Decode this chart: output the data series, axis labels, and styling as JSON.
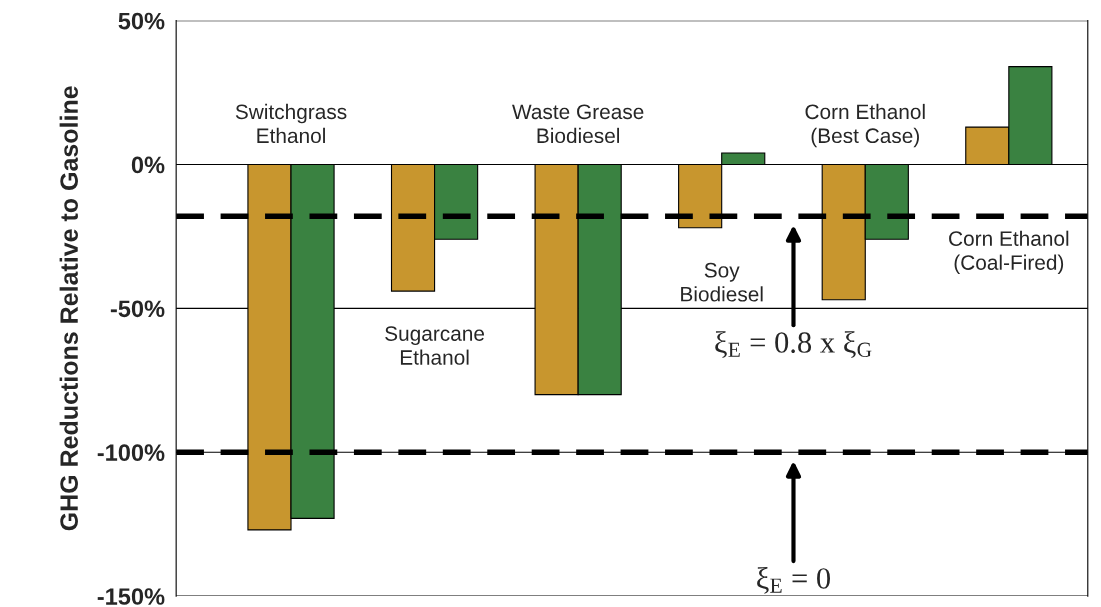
{
  "chart_data": {
    "type": "bar",
    "ylabel": "GHG Reductions Relative to Gasoline",
    "categories": [
      "Switchgrass\nEthanol",
      "Sugarcane\nEthanol",
      "Waste Grease\nBiodiesel",
      "Soy\nBiodiesel",
      "Corn Ethanol\n(Best Case)",
      "Corn Ethanol\n(Coal-Fired)"
    ],
    "series": [
      {
        "color": "#c8962e",
        "values": [
          -127,
          -44,
          -80,
          -22,
          -47,
          13
        ]
      },
      {
        "color": "#3a8241",
        "values": [
          -123,
          -26,
          -80,
          4,
          -26,
          34
        ]
      }
    ],
    "ylim": [
      -150,
      50
    ],
    "yticks": [
      {
        "value": 50,
        "label": "50%"
      },
      {
        "value": 0,
        "label": "0%"
      },
      {
        "value": -50,
        "label": "-50%"
      },
      {
        "value": -100,
        "label": "-100%"
      },
      {
        "value": -150,
        "label": "-150%"
      }
    ],
    "grid": "y",
    "tick_labels": "y",
    "ref_lines": [
      {
        "axis": "y",
        "value": -18,
        "line_style": "dashed",
        "color": "#000000"
      },
      {
        "axis": "y",
        "value": -100,
        "line_style": "dashed",
        "color": "#000000"
      }
    ],
    "annotations": [
      "ξ$_{E}$ = 0.8 x ξ$_{G}$",
      "ξ$_{E}$ = 0"
    ]
  }
}
